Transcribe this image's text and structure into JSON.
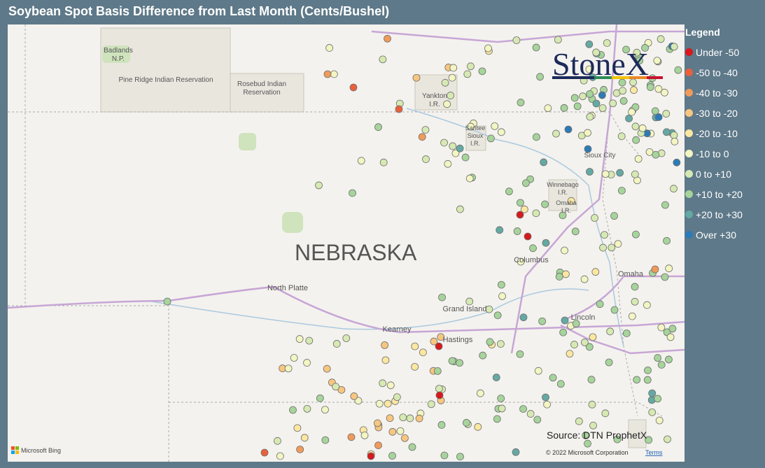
{
  "header": {
    "title": "Soybean Spot Basis Difference from Last Month (Cents/Bushel)"
  },
  "legend": {
    "title": "Legend",
    "items": [
      {
        "label": "Under -50",
        "color": "#d7191c"
      },
      {
        "label": "-50 to -40",
        "color": "#e8603c"
      },
      {
        "label": "-40 to -30",
        "color": "#f09a5b"
      },
      {
        "label": "-30 to -20",
        "color": "#f7c67f"
      },
      {
        "label": "-20 to -10",
        "color": "#fbe7a1"
      },
      {
        "label": "-10 to 0",
        "color": "#f3f5c2"
      },
      {
        "label": "0 to +10",
        "color": "#d6e9b2"
      },
      {
        "label": "+10 to +20",
        "color": "#a6d49b"
      },
      {
        "label": "+20 to +30",
        "color": "#64a9a3"
      },
      {
        "label": "Over +30",
        "color": "#2c7bb6"
      }
    ]
  },
  "map_labels": [
    {
      "lines": [
        "Badlands",
        "N.P."
      ]
    },
    {
      "lines": [
        "Pine Ridge Indian Reservation"
      ]
    },
    {
      "lines": [
        "Rosebud Indian",
        "Reservation"
      ]
    },
    {
      "lines": [
        "Yankton",
        "I.R."
      ]
    },
    {
      "lines": [
        "Santee",
        "Sioux",
        "I.R."
      ]
    },
    {
      "lines": [
        "Sioux City"
      ]
    },
    {
      "lines": [
        "Winnebago",
        "I.R."
      ]
    },
    {
      "lines": [
        "Omaha",
        "I.R."
      ]
    },
    {
      "lines": [
        "NEBRASKA"
      ]
    },
    {
      "lines": [
        "Columbus"
      ]
    },
    {
      "lines": [
        "Omaha"
      ]
    },
    {
      "lines": [
        "North Platte"
      ]
    },
    {
      "lines": [
        "Grand Island"
      ]
    },
    {
      "lines": [
        "Kearney"
      ]
    },
    {
      "lines": [
        "Hastings"
      ]
    },
    {
      "lines": [
        "Lincoln"
      ]
    }
  ],
  "logo": "StoneX",
  "source": "Source: DTN ProphetX",
  "attribution": {
    "copyright": "© 2022 Microsoft Corporation",
    "terms": "Terms",
    "provider": "Microsoft Bing"
  }
}
